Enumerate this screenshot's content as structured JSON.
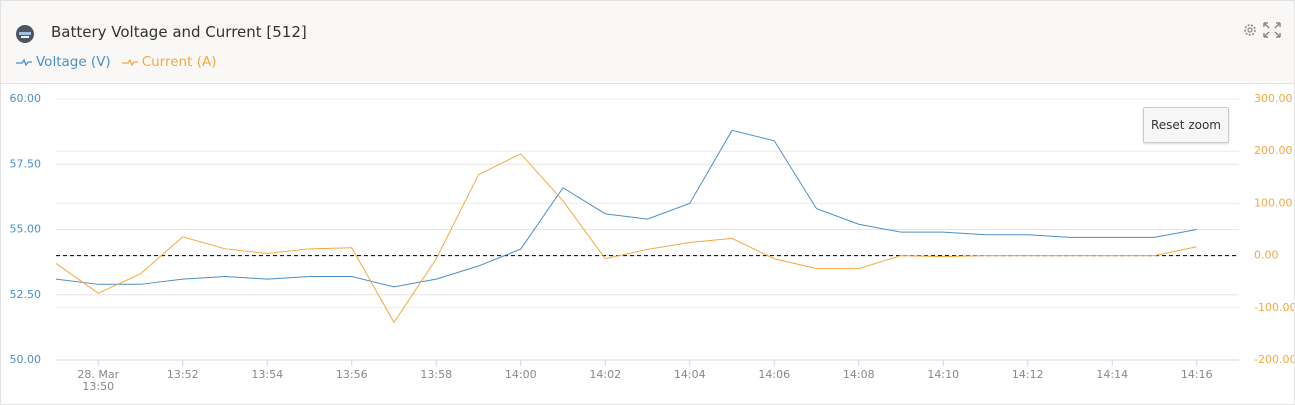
{
  "header": {
    "reset_button": "Reset zoom"
  },
  "chart_data": {
    "type": "line",
    "title": "Battery Voltage and Current [512]",
    "x": [
      "13:49",
      "13:50",
      "13:51",
      "13:52",
      "13:53",
      "13:54",
      "13:55",
      "13:56",
      "13:57",
      "13:58",
      "13:59",
      "14:00",
      "14:01",
      "14:02",
      "14:03",
      "14:04",
      "14:05",
      "14:06",
      "14:07",
      "14:08",
      "14:09",
      "14:10",
      "14:11",
      "14:12",
      "14:13",
      "14:14",
      "14:15",
      "14:16"
    ],
    "xlim": [
      "13:49",
      "14:17"
    ],
    "xticks": [
      {
        "value": "13:50",
        "label": "28. Mar 13:50"
      },
      "13:52",
      "13:54",
      "13:56",
      "13:58",
      "14:00",
      "14:02",
      "14:04",
      "14:06",
      "14:08",
      "14:10",
      "14:12",
      "14:14",
      "14:16"
    ],
    "ylim": [
      50,
      60
    ],
    "yticks": [
      {
        "value": 50,
        "label": "50.00"
      },
      {
        "value": 52.5,
        "label": "52.50"
      },
      {
        "value": 55,
        "label": "55.00"
      },
      {
        "value": 57.5,
        "label": "57.50"
      },
      {
        "value": 60,
        "label": "60.00"
      }
    ],
    "y2lim": [
      -200,
      300
    ],
    "y2ticks": [
      {
        "value": -200,
        "label": "-200.00"
      },
      {
        "value": -100,
        "label": "-100.00"
      },
      {
        "value": 0,
        "label": "0.00"
      },
      {
        "value": 100,
        "label": "100.00"
      },
      {
        "value": 200,
        "label": "200.00"
      },
      {
        "value": 300,
        "label": "300.00"
      }
    ],
    "y2_reference_line": 0,
    "grid": true,
    "series": [
      {
        "name": "Voltage (V)",
        "color": "#4a8fc9",
        "values": [
          53.1,
          52.9,
          52.9,
          53.1,
          53.2,
          53.1,
          53.2,
          53.2,
          52.8,
          53.1,
          53.6,
          54.25,
          56.6,
          55.6,
          55.4,
          56.0,
          58.8,
          58.4,
          55.8,
          55.2,
          54.9,
          54.9,
          54.8,
          54.8,
          54.7,
          54.7,
          54.7,
          55.0
        ]
      },
      {
        "name": "Current (A)",
        "color": "#f4a93f",
        "axis": "y2",
        "values": [
          -15,
          -72,
          -35,
          36,
          13,
          4,
          13,
          15,
          -128,
          -6,
          155,
          195,
          105,
          -6,
          12,
          25,
          33,
          -6,
          -25,
          -25,
          0,
          -2,
          0,
          0,
          0,
          0,
          0,
          17
        ]
      }
    ]
  }
}
